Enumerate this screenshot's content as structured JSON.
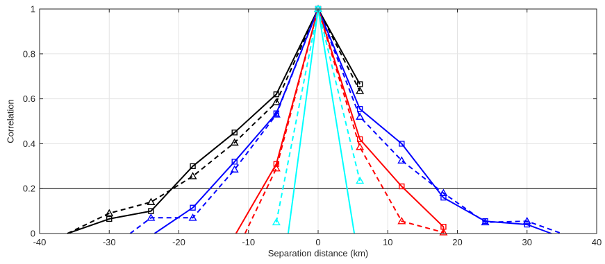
{
  "chart_data": {
    "type": "line",
    "title": "",
    "xlabel": "Separation distance (km)",
    "ylabel": "Correlation",
    "xlim": [
      -40,
      40
    ],
    "ylim": [
      0,
      1
    ],
    "xticks": [
      "-40",
      "-30",
      "-20",
      "-10",
      "0",
      "10",
      "20",
      "30",
      "40"
    ],
    "yticks": [
      "0",
      "0.2",
      "0.4",
      "0.6",
      "0.8",
      "1"
    ],
    "grid": true,
    "reference_line": {
      "y": 0.2,
      "color": "#000000"
    },
    "series": [
      {
        "color": "#000000",
        "dash": false,
        "marker": "square",
        "points": [
          [
            -36,
            0
          ],
          [
            -30,
            0.065
          ],
          [
            -24,
            0.1
          ],
          [
            -18,
            0.3
          ],
          [
            -12,
            0.45
          ],
          [
            -6,
            0.62
          ],
          [
            0,
            1
          ],
          [
            6,
            0.665
          ]
        ],
        "markers": [
          [
            -30,
            0.065
          ],
          [
            -24,
            0.1
          ],
          [
            -18,
            0.3
          ],
          [
            -12,
            0.45
          ],
          [
            -6,
            0.62
          ],
          [
            0,
            1
          ],
          [
            6,
            0.665
          ]
        ]
      },
      {
        "color": "#000000",
        "dash": true,
        "marker": "triangle",
        "points": [
          [
            -36,
            0
          ],
          [
            -30,
            0.09
          ],
          [
            -24,
            0.14
          ],
          [
            -18,
            0.255
          ],
          [
            -12,
            0.405
          ],
          [
            -6,
            0.585
          ],
          [
            0,
            1
          ],
          [
            6,
            0.635
          ]
        ],
        "markers": [
          [
            -30,
            0.09
          ],
          [
            -24,
            0.14
          ],
          [
            -18,
            0.255
          ],
          [
            -12,
            0.405
          ],
          [
            -6,
            0.585
          ],
          [
            0,
            1
          ],
          [
            6,
            0.635
          ]
        ]
      },
      {
        "color": "#0000ff",
        "dash": false,
        "marker": "square",
        "points": [
          [
            -23.5,
            0
          ],
          [
            -18,
            0.115
          ],
          [
            -12,
            0.32
          ],
          [
            -6,
            0.535
          ],
          [
            0,
            1
          ],
          [
            6,
            0.555
          ],
          [
            12,
            0.4
          ],
          [
            18,
            0.16
          ],
          [
            24,
            0.055
          ],
          [
            30,
            0.04
          ],
          [
            33.5,
            0
          ]
        ],
        "markers": [
          [
            -18,
            0.115
          ],
          [
            -12,
            0.32
          ],
          [
            -6,
            0.535
          ],
          [
            0,
            1
          ],
          [
            6,
            0.555
          ],
          [
            12,
            0.4
          ],
          [
            18,
            0.16
          ],
          [
            24,
            0.055
          ],
          [
            30,
            0.04
          ]
        ]
      },
      {
        "color": "#0000ff",
        "dash": true,
        "marker": "triangle",
        "points": [
          [
            -27,
            0
          ],
          [
            -24,
            0.07
          ],
          [
            -18,
            0.07
          ],
          [
            -12,
            0.285
          ],
          [
            -6,
            0.53
          ],
          [
            0,
            1
          ],
          [
            6,
            0.52
          ],
          [
            12,
            0.325
          ],
          [
            18,
            0.18
          ],
          [
            24,
            0.05
          ],
          [
            30,
            0.055
          ],
          [
            35,
            0
          ]
        ],
        "markers": [
          [
            -24,
            0.07
          ],
          [
            -18,
            0.07
          ],
          [
            -12,
            0.285
          ],
          [
            -6,
            0.53
          ],
          [
            0,
            1
          ],
          [
            6,
            0.52
          ],
          [
            12,
            0.325
          ],
          [
            18,
            0.18
          ],
          [
            24,
            0.05
          ],
          [
            30,
            0.055
          ]
        ]
      },
      {
        "color": "#ff0000",
        "dash": false,
        "marker": "square",
        "points": [
          [
            -11.8,
            0
          ],
          [
            -6,
            0.31
          ],
          [
            0,
            1
          ],
          [
            6,
            0.42
          ],
          [
            12,
            0.21
          ],
          [
            18,
            0.03
          ],
          [
            18,
            0
          ]
        ],
        "markers": [
          [
            -6,
            0.31
          ],
          [
            0,
            1
          ],
          [
            6,
            0.42
          ],
          [
            12,
            0.21
          ],
          [
            18,
            0.03
          ]
        ]
      },
      {
        "color": "#ff0000",
        "dash": true,
        "marker": "triangle",
        "points": [
          [
            -10.5,
            0
          ],
          [
            -6,
            0.29
          ],
          [
            0,
            1
          ],
          [
            6,
            0.385
          ],
          [
            12,
            0.055
          ],
          [
            18,
            0.005
          ]
        ],
        "markers": [
          [
            -6,
            0.29
          ],
          [
            0,
            1
          ],
          [
            6,
            0.385
          ],
          [
            12,
            0.055
          ],
          [
            18,
            0.005
          ]
        ]
      },
      {
        "color": "#00ffff",
        "dash": false,
        "marker": "square",
        "points": [
          [
            -4.3,
            0
          ],
          [
            0,
            1
          ],
          [
            5.2,
            0
          ]
        ],
        "markers": [
          [
            0,
            1
          ]
        ]
      },
      {
        "color": "#00ffff",
        "dash": true,
        "marker": "triangle",
        "points": [
          [
            -6,
            0.05
          ],
          [
            0,
            1
          ],
          [
            6,
            0.235
          ]
        ],
        "markers": [
          [
            -6,
            0.05
          ],
          [
            0,
            1
          ],
          [
            6,
            0.235
          ]
        ]
      }
    ]
  }
}
